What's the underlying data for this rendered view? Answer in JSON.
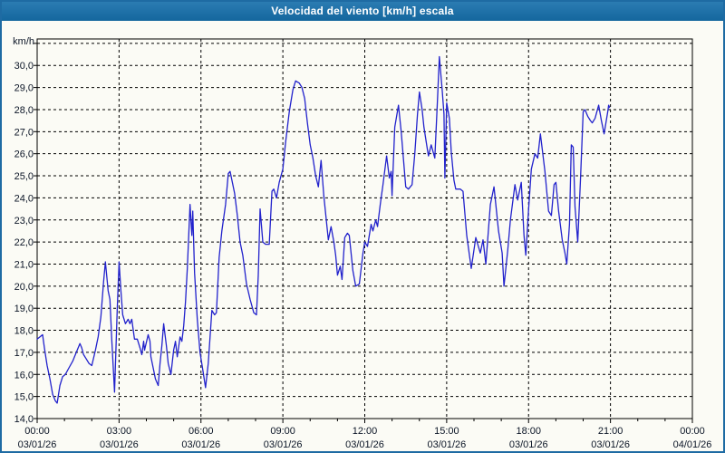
{
  "window": {
    "title": "Velocidad del viento [km/h] escala"
  },
  "colors": {
    "titlebar": "#17689e",
    "window_border": "#1e6ba3",
    "series_line": "#2222cc",
    "grid": "#000000",
    "label_text": "#0b1526",
    "background": "#fbfbf5"
  },
  "chart_data": {
    "type": "line",
    "title": "Velocidad del viento [km/h] escala",
    "unit_label": "km/h",
    "ylabel": "km/h",
    "xlabel": "",
    "ylim": [
      14.0,
      31.2
    ],
    "x_range_hours": [
      0,
      24
    ],
    "grid": "dashed",
    "legend": "none",
    "y_ticks": [
      {
        "value": 30,
        "label": "30,0"
      },
      {
        "value": 29,
        "label": "29,0"
      },
      {
        "value": 28,
        "label": "28,0"
      },
      {
        "value": 27,
        "label": "27,0"
      },
      {
        "value": 26,
        "label": "26,0"
      },
      {
        "value": 25,
        "label": "25,0"
      },
      {
        "value": 24,
        "label": "24,0"
      },
      {
        "value": 23,
        "label": "23,0"
      },
      {
        "value": 22,
        "label": "22,0"
      },
      {
        "value": 21,
        "label": "21,0"
      },
      {
        "value": 20,
        "label": "20,0"
      },
      {
        "value": 19,
        "label": "19,0"
      },
      {
        "value": 18,
        "label": "18,0"
      },
      {
        "value": 17,
        "label": "17,0"
      },
      {
        "value": 16,
        "label": "16,0"
      },
      {
        "value": 15,
        "label": "15,0"
      },
      {
        "value": 14,
        "label": "14,0"
      }
    ],
    "x_ticks": [
      {
        "hour": 0,
        "time": "00:00",
        "date": "03/01/26"
      },
      {
        "hour": 3,
        "time": "03:00",
        "date": "03/01/26"
      },
      {
        "hour": 6,
        "time": "06:00",
        "date": "03/01/26"
      },
      {
        "hour": 9,
        "time": "09:00",
        "date": "03/01/26"
      },
      {
        "hour": 12,
        "time": "12:00",
        "date": "03/01/26"
      },
      {
        "hour": 15,
        "time": "15:00",
        "date": "03/01/26"
      },
      {
        "hour": 18,
        "time": "18:00",
        "date": "03/01/26"
      },
      {
        "hour": 21,
        "time": "21:00",
        "date": "03/01/26"
      },
      {
        "hour": 24,
        "time": "00:00",
        "date": "04/01/26"
      }
    ],
    "points": [
      [
        0,
        17.6
      ],
      [
        6,
        17.7
      ],
      [
        12,
        17.8
      ],
      [
        16,
        17.2
      ],
      [
        22,
        16.4
      ],
      [
        28,
        15.8
      ],
      [
        34,
        15.1
      ],
      [
        40,
        14.8
      ],
      [
        44,
        14.7
      ],
      [
        50,
        15.5
      ],
      [
        56,
        15.9
      ],
      [
        62,
        16.0
      ],
      [
        70,
        16.3
      ],
      [
        78,
        16.6
      ],
      [
        86,
        17.0
      ],
      [
        94,
        17.4
      ],
      [
        98,
        17.2
      ],
      [
        102,
        16.9
      ],
      [
        108,
        16.7
      ],
      [
        114,
        16.5
      ],
      [
        120,
        16.4
      ],
      [
        128,
        17.1
      ],
      [
        134,
        17.7
      ],
      [
        140,
        18.6
      ],
      [
        146,
        20.2
      ],
      [
        150,
        21.1
      ],
      [
        156,
        19.8
      ],
      [
        160,
        19.4
      ],
      [
        164,
        17.6
      ],
      [
        170,
        15.2
      ],
      [
        176,
        19.0
      ],
      [
        180,
        21.1
      ],
      [
        184,
        19.8
      ],
      [
        188,
        18.7
      ],
      [
        194,
        18.3
      ],
      [
        200,
        18.5
      ],
      [
        204,
        18.3
      ],
      [
        208,
        18.5
      ],
      [
        214,
        17.6
      ],
      [
        220,
        17.6
      ],
      [
        226,
        17.2
      ],
      [
        230,
        16.9
      ],
      [
        234,
        17.5
      ],
      [
        236,
        17.1
      ],
      [
        244,
        17.8
      ],
      [
        248,
        17.5
      ],
      [
        250,
        16.8
      ],
      [
        256,
        16.2
      ],
      [
        260,
        15.8
      ],
      [
        266,
        15.5
      ],
      [
        270,
        16.5
      ],
      [
        274,
        17.3
      ],
      [
        278,
        18.3
      ],
      [
        284,
        17.3
      ],
      [
        288,
        16.5
      ],
      [
        294,
        16.0
      ],
      [
        300,
        17.1
      ],
      [
        304,
        17.5
      ],
      [
        308,
        16.8
      ],
      [
        314,
        17.7
      ],
      [
        318,
        17.5
      ],
      [
        322,
        18.2
      ],
      [
        326,
        19.3
      ],
      [
        330,
        20.8
      ],
      [
        336,
        23.7
      ],
      [
        340,
        22.3
      ],
      [
        342,
        23.4
      ],
      [
        346,
        20.6
      ],
      [
        352,
        18.5
      ],
      [
        358,
        17.0
      ],
      [
        364,
        16.2
      ],
      [
        370,
        15.4
      ],
      [
        376,
        16.5
      ],
      [
        384,
        18.9
      ],
      [
        390,
        18.7
      ],
      [
        394,
        18.8
      ],
      [
        400,
        21.3
      ],
      [
        406,
        22.5
      ],
      [
        414,
        23.7
      ],
      [
        420,
        25.1
      ],
      [
        424,
        25.2
      ],
      [
        430,
        24.6
      ],
      [
        434,
        24.2
      ],
      [
        440,
        23.2
      ],
      [
        446,
        22.0
      ],
      [
        452,
        21.4
      ],
      [
        460,
        20.1
      ],
      [
        468,
        19.4
      ],
      [
        476,
        18.8
      ],
      [
        482,
        18.7
      ],
      [
        486,
        20.5
      ],
      [
        490,
        23.5
      ],
      [
        496,
        22.0
      ],
      [
        502,
        21.9
      ],
      [
        510,
        21.9
      ],
      [
        516,
        24.3
      ],
      [
        520,
        24.4
      ],
      [
        526,
        24.0
      ],
      [
        532,
        24.7
      ],
      [
        540,
        25.3
      ],
      [
        546,
        26.5
      ],
      [
        554,
        27.9
      ],
      [
        562,
        28.9
      ],
      [
        568,
        29.3
      ],
      [
        576,
        29.2
      ],
      [
        582,
        29.0
      ],
      [
        588,
        28.5
      ],
      [
        594,
        27.4
      ],
      [
        600,
        26.4
      ],
      [
        606,
        25.8
      ],
      [
        612,
        25.0
      ],
      [
        618,
        24.5
      ],
      [
        624,
        25.7
      ],
      [
        630,
        24.1
      ],
      [
        634,
        23.3
      ],
      [
        640,
        22.1
      ],
      [
        646,
        22.7
      ],
      [
        652,
        22.0
      ],
      [
        656,
        21.4
      ],
      [
        660,
        20.5
      ],
      [
        666,
        20.9
      ],
      [
        670,
        20.3
      ],
      [
        676,
        22.2
      ],
      [
        682,
        22.4
      ],
      [
        686,
        22.3
      ],
      [
        694,
        20.7
      ],
      [
        700,
        20.0
      ],
      [
        708,
        20.1
      ],
      [
        716,
        21.5
      ],
      [
        720,
        22.0
      ],
      [
        726,
        21.8
      ],
      [
        734,
        22.8
      ],
      [
        738,
        22.5
      ],
      [
        744,
        23.0
      ],
      [
        748,
        22.7
      ],
      [
        754,
        23.7
      ],
      [
        760,
        24.6
      ],
      [
        768,
        25.9
      ],
      [
        774,
        24.9
      ],
      [
        778,
        25.2
      ],
      [
        780,
        24.1
      ],
      [
        786,
        27.2
      ],
      [
        794,
        28.2
      ],
      [
        800,
        27.0
      ],
      [
        804,
        26.0
      ],
      [
        810,
        24.5
      ],
      [
        816,
        24.4
      ],
      [
        824,
        24.6
      ],
      [
        830,
        26.0
      ],
      [
        836,
        27.8
      ],
      [
        840,
        28.8
      ],
      [
        846,
        28.0
      ],
      [
        850,
        27.2
      ],
      [
        856,
        26.4
      ],
      [
        860,
        25.9
      ],
      [
        866,
        26.4
      ],
      [
        874,
        25.8
      ],
      [
        880,
        28.5
      ],
      [
        884,
        30.4
      ],
      [
        890,
        28.9
      ],
      [
        894,
        27.8
      ],
      [
        896,
        24.9
      ],
      [
        900,
        28.3
      ],
      [
        906,
        27.6
      ],
      [
        910,
        26.1
      ],
      [
        916,
        24.8
      ],
      [
        920,
        24.4
      ],
      [
        930,
        24.4
      ],
      [
        936,
        24.3
      ],
      [
        944,
        22.3
      ],
      [
        954,
        20.8
      ],
      [
        964,
        22.2
      ],
      [
        974,
        21.5
      ],
      [
        980,
        22.1
      ],
      [
        986,
        21.0
      ],
      [
        996,
        23.7
      ],
      [
        1004,
        24.5
      ],
      [
        1014,
        22.5
      ],
      [
        1022,
        21.5
      ],
      [
        1026,
        20.0
      ],
      [
        1034,
        21.6
      ],
      [
        1040,
        23.0
      ],
      [
        1050,
        24.6
      ],
      [
        1056,
        23.9
      ],
      [
        1064,
        24.7
      ],
      [
        1070,
        22.3
      ],
      [
        1074,
        21.4
      ],
      [
        1080,
        23.5
      ],
      [
        1086,
        25.3
      ],
      [
        1094,
        26.0
      ],
      [
        1100,
        25.8
      ],
      [
        1106,
        26.9
      ],
      [
        1116,
        25.2
      ],
      [
        1124,
        23.4
      ],
      [
        1130,
        23.2
      ],
      [
        1136,
        24.6
      ],
      [
        1140,
        24.7
      ],
      [
        1146,
        23.4
      ],
      [
        1154,
        22.1
      ],
      [
        1160,
        21.5
      ],
      [
        1164,
        21.0
      ],
      [
        1170,
        22.8
      ],
      [
        1174,
        26.4
      ],
      [
        1178,
        26.3
      ],
      [
        1182,
        23.6
      ],
      [
        1188,
        22.0
      ],
      [
        1194,
        24.8
      ],
      [
        1200,
        27.9
      ],
      [
        1204,
        28.0
      ],
      [
        1210,
        27.7
      ],
      [
        1216,
        27.5
      ],
      [
        1220,
        27.4
      ],
      [
        1226,
        27.6
      ],
      [
        1234,
        28.2
      ],
      [
        1240,
        27.5
      ],
      [
        1246,
        26.9
      ],
      [
        1254,
        27.9
      ],
      [
        1256,
        28.2
      ],
      [
        1258,
        28.1
      ]
    ]
  }
}
